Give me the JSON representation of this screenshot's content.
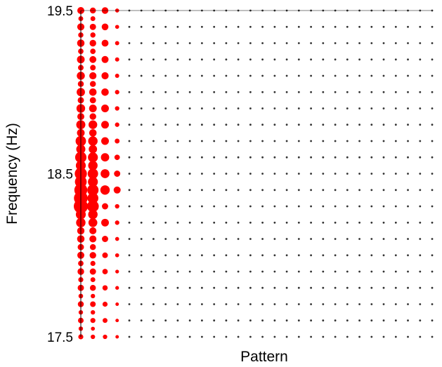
{
  "chart_data": {
    "type": "scatter",
    "encoding": "bubble size = intensity",
    "xlabel": "Pattern",
    "ylabel": "Frequency (Hz)",
    "ylim": [
      17.5,
      19.5
    ],
    "yticks": [
      "17.5",
      "18.5",
      "19.5"
    ],
    "x_pattern_count": 30,
    "y_freq_step": 0.05,
    "grid": false,
    "color": "#ff0000",
    "default_intensity": 0.02,
    "series": [
      {
        "x": 1,
        "freq": [
          17.5,
          17.55,
          17.6,
          17.65,
          17.7,
          17.75,
          17.8,
          17.85,
          17.9,
          17.95,
          18.0,
          18.05,
          18.1,
          18.15,
          18.2,
          18.25,
          18.3,
          18.35,
          18.4,
          18.45,
          18.5,
          18.55,
          18.6,
          18.65,
          18.7,
          18.75,
          18.8,
          18.85,
          18.9,
          18.95,
          19.0,
          19.05,
          19.1,
          19.15,
          19.2,
          19.25,
          19.3,
          19.35,
          19.4,
          19.45,
          19.5
        ],
        "intensity": [
          0.13,
          0.1,
          0.16,
          0.1,
          0.18,
          0.11,
          0.2,
          0.13,
          0.22,
          0.15,
          0.25,
          0.2,
          0.28,
          0.27,
          0.45,
          0.5,
          1.0,
          0.95,
          0.85,
          0.7,
          0.75,
          0.5,
          0.65,
          0.42,
          0.55,
          0.3,
          0.42,
          0.25,
          0.38,
          0.2,
          0.35,
          0.18,
          0.33,
          0.16,
          0.3,
          0.15,
          0.28,
          0.14,
          0.26,
          0.12,
          0.25
        ]
      },
      {
        "x": 2,
        "freq": [
          17.5,
          17.55,
          17.6,
          17.65,
          17.7,
          17.75,
          17.8,
          17.85,
          17.9,
          17.95,
          18.0,
          18.05,
          18.1,
          18.15,
          18.2,
          18.25,
          18.3,
          18.35,
          18.4,
          18.45,
          18.5,
          18.55,
          18.6,
          18.65,
          18.7,
          18.75,
          18.8,
          18.85,
          18.9,
          18.95,
          19.0,
          19.05,
          19.1,
          19.15,
          19.2,
          19.25,
          19.3,
          19.35,
          19.4,
          19.45,
          19.5
        ],
        "intensity": [
          0.1,
          0.08,
          0.13,
          0.1,
          0.16,
          0.1,
          0.18,
          0.12,
          0.2,
          0.13,
          0.22,
          0.18,
          0.25,
          0.25,
          0.4,
          0.45,
          0.7,
          0.6,
          0.65,
          0.5,
          0.55,
          0.45,
          0.5,
          0.35,
          0.45,
          0.28,
          0.38,
          0.22,
          0.3,
          0.2,
          0.28,
          0.18,
          0.26,
          0.16,
          0.24,
          0.15,
          0.22,
          0.14,
          0.2,
          0.12,
          0.18
        ]
      },
      {
        "x": 3,
        "freq": [
          17.5,
          17.6,
          17.7,
          17.8,
          17.9,
          18.0,
          18.1,
          18.2,
          18.3,
          18.4,
          18.5,
          18.6,
          18.7,
          18.8,
          18.9,
          19.0,
          19.1,
          19.2,
          19.3,
          19.4,
          19.5
        ],
        "intensity": [
          0.1,
          0.12,
          0.13,
          0.14,
          0.15,
          0.16,
          0.2,
          0.3,
          0.2,
          0.45,
          0.4,
          0.35,
          0.3,
          0.3,
          0.3,
          0.28,
          0.26,
          0.25,
          0.24,
          0.23,
          0.22
        ]
      },
      {
        "x": 4,
        "freq": [
          17.5,
          17.6,
          17.7,
          17.8,
          17.9,
          18.0,
          18.1,
          18.2,
          18.3,
          18.4,
          18.5,
          18.6,
          18.7,
          18.8,
          18.9,
          19.0,
          19.1,
          19.2,
          19.3,
          19.4,
          19.5
        ],
        "intensity": [
          0.06,
          0.06,
          0.06,
          0.07,
          0.07,
          0.08,
          0.08,
          0.1,
          0.1,
          0.25,
          0.2,
          0.15,
          0.12,
          0.1,
          0.1,
          0.1,
          0.09,
          0.09,
          0.09,
          0.08,
          0.08
        ]
      }
    ]
  }
}
